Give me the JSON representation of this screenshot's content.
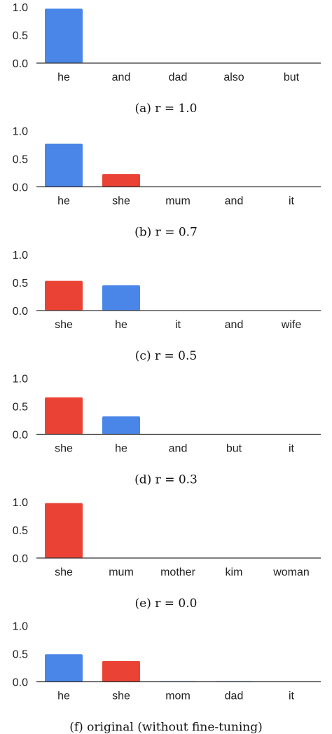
{
  "colors": {
    "blue": "#4A86E8",
    "red": "#EA4335",
    "axis": "#333333"
  },
  "chart_data": [
    {
      "type": "bar",
      "caption": "(a) r = 1.0",
      "categories": [
        "he",
        "and",
        "dad",
        "also",
        "but"
      ],
      "values": [
        0.97,
        0.0,
        0.0,
        0.0,
        0.0
      ],
      "bar_colors": [
        "blue",
        "blue",
        "blue",
        "blue",
        "blue"
      ],
      "yticks": [
        "0.0",
        "0.5",
        "1.0"
      ],
      "ylim": [
        0,
        1.0
      ],
      "grid": false
    },
    {
      "type": "bar",
      "caption": "(b) r = 0.7",
      "categories": [
        "he",
        "she",
        "mum",
        "and",
        "it"
      ],
      "values": [
        0.77,
        0.23,
        0.0,
        0.0,
        0.0
      ],
      "bar_colors": [
        "blue",
        "red",
        "red",
        "blue",
        "blue"
      ],
      "yticks": [
        "0.0",
        "0.5",
        "1.0"
      ],
      "ylim": [
        0,
        1.0
      ],
      "grid": false
    },
    {
      "type": "bar",
      "caption": "(c) r = 0.5",
      "categories": [
        "she",
        "he",
        "it",
        "and",
        "wife"
      ],
      "values": [
        0.53,
        0.45,
        0.0,
        0.0,
        0.0
      ],
      "bar_colors": [
        "red",
        "blue",
        "blue",
        "blue",
        "red"
      ],
      "yticks": [
        "0.0",
        "0.5",
        "1.0"
      ],
      "ylim": [
        0,
        1.0
      ],
      "grid": false
    },
    {
      "type": "bar",
      "caption": "(d) r = 0.3",
      "categories": [
        "she",
        "he",
        "and",
        "but",
        "it"
      ],
      "values": [
        0.66,
        0.32,
        0.0,
        0.0,
        0.0
      ],
      "bar_colors": [
        "red",
        "blue",
        "blue",
        "blue",
        "blue"
      ],
      "yticks": [
        "0.0",
        "0.5",
        "1.0"
      ],
      "ylim": [
        0,
        1.0
      ],
      "grid": false
    },
    {
      "type": "bar",
      "caption": "(e) r = 0.0",
      "categories": [
        "she",
        "mum",
        "mother",
        "kim",
        "woman"
      ],
      "values": [
        0.98,
        0.0,
        0.0,
        0.0,
        0.0
      ],
      "bar_colors": [
        "red",
        "red",
        "red",
        "red",
        "red"
      ],
      "yticks": [
        "0.0",
        "0.5",
        "1.0"
      ],
      "ylim": [
        0,
        1.0
      ],
      "grid": false
    },
    {
      "type": "bar",
      "caption": "(f) original (without fine-tuning)",
      "categories": [
        "he",
        "she",
        "mom",
        "dad",
        "it"
      ],
      "values": [
        0.49,
        0.37,
        0.01,
        0.01,
        0.0
      ],
      "bar_colors": [
        "blue",
        "red",
        "blue",
        "blue",
        "blue"
      ],
      "yticks": [
        "0.0",
        "0.5",
        "1.0"
      ],
      "ylim": [
        0,
        1.0
      ],
      "grid": false
    }
  ]
}
